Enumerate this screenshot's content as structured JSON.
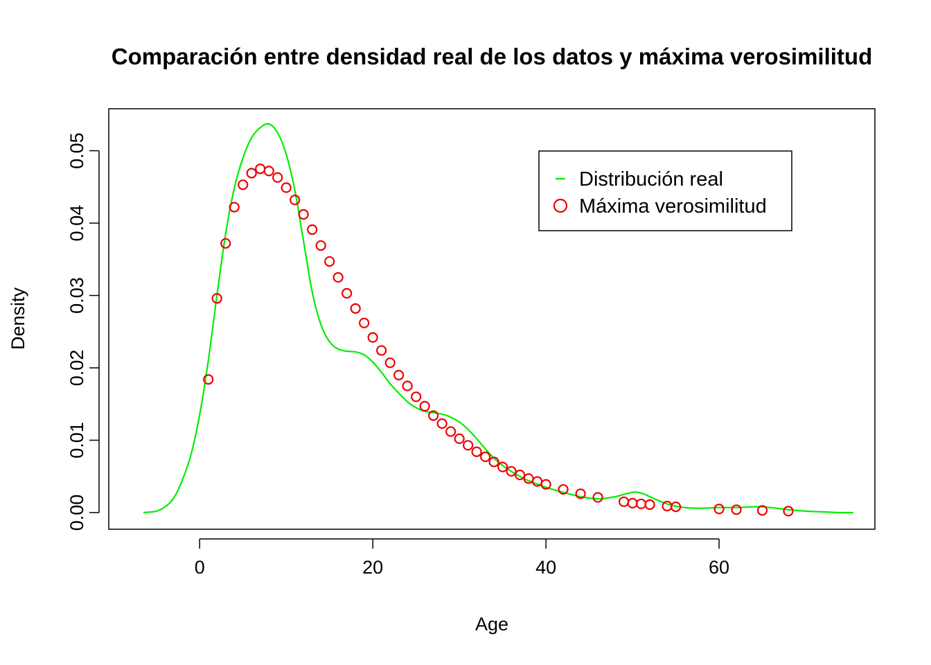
{
  "chart_data": {
    "type": "line",
    "title": "Comparación entre densidad real de los datos y máxima verosimilitud",
    "xlabel": "Age",
    "ylabel": "Density",
    "xlim": [
      -10.5,
      78
    ],
    "ylim": [
      -0.0023,
      0.0558
    ],
    "xticks": [
      0,
      20,
      40,
      60
    ],
    "xtick_labels": [
      "0",
      "20",
      "40",
      "60"
    ],
    "yticks": [
      0,
      0.01,
      0.02,
      0.03,
      0.04,
      0.05
    ],
    "ytick_labels": [
      "0.00",
      "0.01",
      "0.02",
      "0.03",
      "0.04",
      "0.05"
    ],
    "grid": false,
    "legend": {
      "position": "top-right",
      "entries": [
        {
          "label": "Distribución real",
          "color": "#00ee00",
          "symbol": "line"
        },
        {
          "label": "Máxima verosimilitud",
          "color": "#ee0000",
          "symbol": "circle"
        }
      ]
    },
    "series": [
      {
        "name": "Distribución real",
        "type": "line",
        "color": "#00ee00",
        "x": [
          -6.5,
          -5,
          -4,
          -3,
          -2,
          -1,
          0,
          1,
          2,
          3,
          4,
          5,
          6,
          7,
          8,
          9,
          10,
          11,
          12,
          13,
          14,
          15,
          16,
          17,
          18,
          19,
          20,
          21,
          22,
          23,
          24,
          25,
          26,
          27,
          28,
          29,
          30,
          31,
          32,
          33,
          34,
          35,
          36,
          37,
          38,
          40,
          42,
          44,
          46,
          48,
          50,
          51,
          52,
          54,
          56,
          58,
          60,
          62,
          64,
          65,
          66,
          68,
          70,
          72,
          74,
          75.5
        ],
        "y": [
          0.0,
          0.0002,
          0.0008,
          0.002,
          0.0045,
          0.008,
          0.0135,
          0.021,
          0.03,
          0.0385,
          0.0448,
          0.049,
          0.0518,
          0.0532,
          0.0537,
          0.0525,
          0.0495,
          0.0445,
          0.0375,
          0.0305,
          0.026,
          0.0236,
          0.0226,
          0.0223,
          0.0222,
          0.0218,
          0.0208,
          0.0194,
          0.0178,
          0.0165,
          0.0153,
          0.0145,
          0.014,
          0.0138,
          0.0136,
          0.0132,
          0.0125,
          0.0115,
          0.0102,
          0.0088,
          0.0075,
          0.0065,
          0.0057,
          0.005,
          0.0044,
          0.0035,
          0.0028,
          0.0022,
          0.0019,
          0.0022,
          0.0028,
          0.0027,
          0.0022,
          0.0012,
          0.0007,
          0.0006,
          0.0007,
          0.0007,
          0.0008,
          0.0008,
          0.0007,
          0.0004,
          0.0002,
          0.0001,
          0.0,
          0.0
        ]
      },
      {
        "name": "Máxima verosimilitud",
        "type": "scatter",
        "color": "#ee0000",
        "x": [
          1,
          2,
          3,
          4,
          5,
          6,
          7,
          8,
          9,
          10,
          11,
          12,
          13,
          14,
          15,
          16,
          17,
          18,
          19,
          20,
          21,
          22,
          23,
          24,
          25,
          26,
          27,
          28,
          29,
          30,
          31,
          32,
          33,
          34,
          35,
          36,
          37,
          38,
          39,
          40,
          42,
          44,
          46,
          49,
          50,
          51,
          52,
          54,
          55,
          60,
          62,
          65,
          68
        ],
        "y": [
          0.0184,
          0.0296,
          0.0372,
          0.0422,
          0.0453,
          0.0469,
          0.0475,
          0.0472,
          0.0463,
          0.0449,
          0.0432,
          0.0412,
          0.0391,
          0.0369,
          0.0347,
          0.0325,
          0.0303,
          0.0282,
          0.0262,
          0.0242,
          0.0224,
          0.0207,
          0.019,
          0.0175,
          0.016,
          0.0147,
          0.0134,
          0.0123,
          0.0112,
          0.0102,
          0.0093,
          0.0084,
          0.0077,
          0.007,
          0.0063,
          0.0057,
          0.0052,
          0.0047,
          0.0043,
          0.0039,
          0.0032,
          0.0026,
          0.0021,
          0.0015,
          0.0013,
          0.0012,
          0.0011,
          0.0009,
          0.0008,
          0.0005,
          0.0004,
          0.0003,
          0.0002
        ]
      }
    ]
  }
}
